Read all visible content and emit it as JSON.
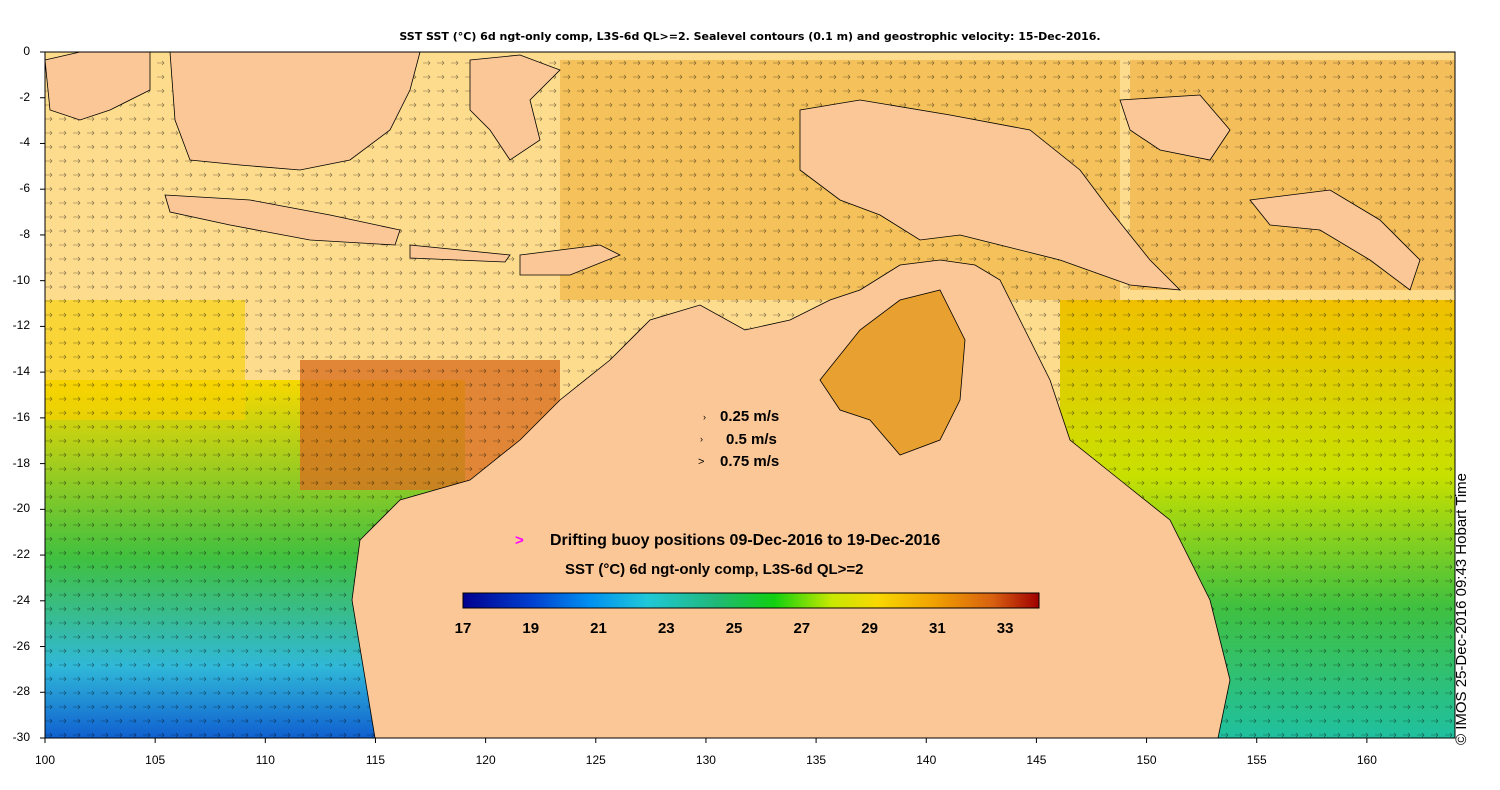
{
  "header": {
    "title": "SST SST (°C) 6d ngt-only comp, L3S-6d QL>=2. Sealevel contours (0.1 m) and geostrophic velocity: 15-Dec-2016."
  },
  "axes": {
    "y_ticks": [
      "0",
      "-2",
      "-4",
      "-6",
      "-8",
      "-10",
      "-12",
      "-14",
      "-16",
      "-18",
      "-20",
      "-22",
      "-24",
      "-26",
      "-28",
      "-30"
    ],
    "x_ticks": [
      "100",
      "105",
      "110",
      "115",
      "120",
      "125",
      "130",
      "135",
      "140",
      "145",
      "150",
      "155",
      "160"
    ],
    "lon_range": [
      100,
      164
    ],
    "lat_range": [
      -30,
      0
    ]
  },
  "velocity_legend": {
    "items": [
      {
        "arrow": "›",
        "label": "0.25 m/s"
      },
      {
        "arrow": "›",
        "label": "0.5 m/s"
      },
      {
        "arrow": ">",
        "label": "0.75 m/s"
      }
    ]
  },
  "buoy_legend": {
    "marker": ">",
    "label": "Drifting buoy positions 09-Dec-2016 to 19-Dec-2016"
  },
  "colorbar": {
    "title": "SST (°C) 6d ngt-only comp, L3S-6d QL>=2",
    "labels": [
      "17",
      "19",
      "21",
      "23",
      "25",
      "27",
      "29",
      "31",
      "33"
    ],
    "range": [
      17,
      34
    ]
  },
  "credit": "© IMOS 25-Dec-2016 09:43 Hobart Time",
  "colors": {
    "land": "#fbc796",
    "colormap": [
      "#00008f",
      "#0040d0",
      "#0090f0",
      "#20c8d8",
      "#20b878",
      "#10d010",
      "#c8e800",
      "#f8d800",
      "#f0a000",
      "#d86010",
      "#a00000"
    ]
  }
}
